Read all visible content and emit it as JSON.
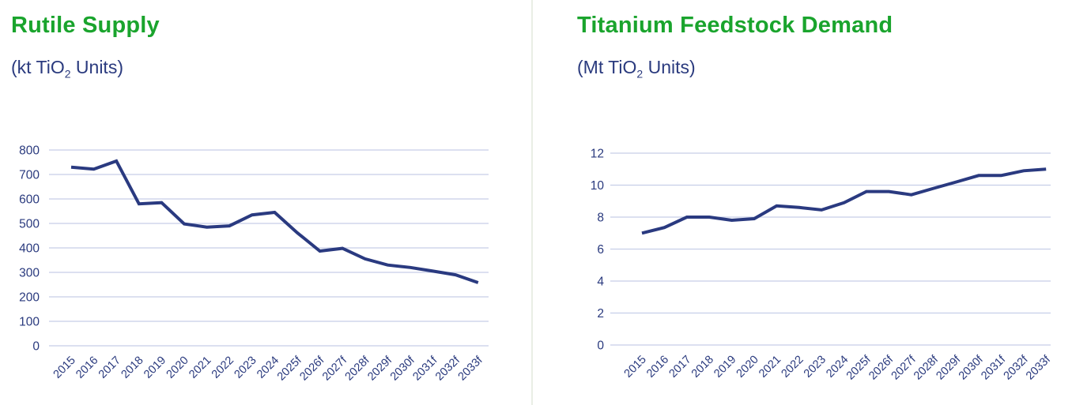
{
  "page": {
    "divider_color": "#e9eee5",
    "background_color": "#ffffff"
  },
  "theme": {
    "title_color": "#1aa42d",
    "text_color": "#2a3a7e",
    "line_color": "#2a3a80",
    "gridline_color": "#c6cee8"
  },
  "panels": [
    {
      "subtitle": {
        "prefix": "(kt TiO",
        "sub": "2",
        "suffix": " Units)"
      }
    },
    {
      "subtitle": {
        "prefix": "(Mt TiO",
        "sub": "2",
        "suffix": " Units)"
      }
    }
  ],
  "chart_data": [
    {
      "type": "line",
      "title": "Rutile Supply",
      "ylabel": "(kt TiO2 Units)",
      "categories": [
        "2015",
        "2016",
        "2017",
        "2018",
        "2019",
        "2020",
        "2021",
        "2022",
        "2023",
        "2024",
        "2025f",
        "2026f",
        "2027f",
        "2028f",
        "2029f",
        "2030f",
        "2031f",
        "2032f",
        "2033f"
      ],
      "values": [
        730,
        722,
        755,
        580,
        585,
        498,
        485,
        490,
        535,
        545,
        462,
        387,
        398,
        355,
        330,
        320,
        305,
        290,
        258
      ],
      "ylim": [
        0,
        800
      ],
      "ytick_step": 100,
      "ytick_labels": [
        "0",
        "100",
        "200",
        "300",
        "400",
        "500",
        "600",
        "700",
        "800"
      ],
      "grid": true,
      "legend": "none",
      "line_color": "#2a3a80",
      "gridline_color": "#c6cee8",
      "label_color": "#2a3a7e"
    },
    {
      "type": "line",
      "title": "Titanium Feedstock Demand",
      "ylabel": "(Mt TiO2 Units)",
      "categories": [
        "2015",
        "2016",
        "2017",
        "2018",
        "2019",
        "2020",
        "2021",
        "2022",
        "2023",
        "2024",
        "2025f",
        "2026f",
        "2027f",
        "2028f",
        "2029f",
        "2030f",
        "2031f",
        "2032f",
        "2033f"
      ],
      "values": [
        7.0,
        7.35,
        8.0,
        8.0,
        7.8,
        7.9,
        8.7,
        8.6,
        8.45,
        8.9,
        9.6,
        9.6,
        9.4,
        9.8,
        10.2,
        10.6,
        10.6,
        10.9,
        11.0
      ],
      "ylim": [
        0,
        12
      ],
      "ytick_step": 2,
      "ytick_labels": [
        "0",
        "2",
        "4",
        "6",
        "8",
        "10",
        "12"
      ],
      "grid": true,
      "legend": "none",
      "line_color": "#2a3a80",
      "gridline_color": "#c6cee8",
      "label_color": "#2a3a7e"
    }
  ]
}
